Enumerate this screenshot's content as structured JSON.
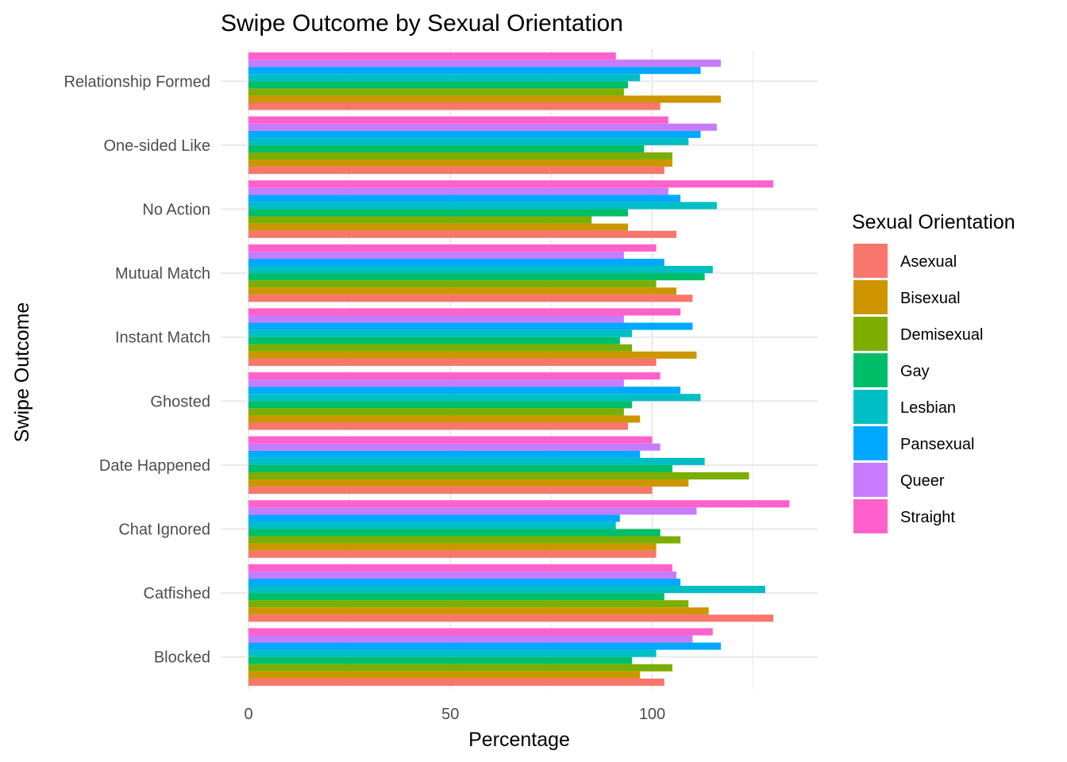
{
  "chart_data": {
    "type": "bar",
    "orientation": "horizontal",
    "title": "Swipe Outcome by Sexual Orientation",
    "xlabel": "Percentage",
    "ylabel": "Swipe Outcome",
    "xlim": [
      0,
      141
    ],
    "x_ticks": [
      0,
      50,
      100
    ],
    "grid": true,
    "legend_title": "Sexual Orientation",
    "legend_position": "right",
    "categories": [
      "Blocked",
      "Catfished",
      "Chat Ignored",
      "Date Happened",
      "Ghosted",
      "Instant Match",
      "Mutual Match",
      "No Action",
      "One-sided Like",
      "Relationship Formed"
    ],
    "series": [
      {
        "name": "Asexual",
        "color": "#F8766D",
        "values": [
          103,
          130,
          101,
          100,
          94,
          101,
          110,
          106,
          103,
          102
        ]
      },
      {
        "name": "Bisexual",
        "color": "#CD9600",
        "values": [
          97,
          114,
          101,
          109,
          97,
          111,
          106,
          94,
          105,
          117
        ]
      },
      {
        "name": "Demisexual",
        "color": "#7CAE00",
        "values": [
          105,
          109,
          107,
          124,
          93,
          95,
          101,
          85,
          105,
          93
        ]
      },
      {
        "name": "Gay",
        "color": "#00BE67",
        "values": [
          95,
          103,
          102,
          105,
          95,
          92,
          113,
          94,
          98,
          94
        ]
      },
      {
        "name": "Lesbian",
        "color": "#00BFC4",
        "values": [
          101,
          128,
          91,
          113,
          112,
          95,
          115,
          116,
          109,
          97
        ]
      },
      {
        "name": "Pansexual",
        "color": "#00A9FF",
        "values": [
          117,
          107,
          92,
          97,
          107,
          110,
          103,
          107,
          112,
          112
        ]
      },
      {
        "name": "Queer",
        "color": "#C77CFF",
        "values": [
          110,
          106,
          111,
          102,
          93,
          93,
          93,
          104,
          116,
          117
        ]
      },
      {
        "name": "Straight",
        "color": "#FF61CC",
        "values": [
          115,
          105,
          134,
          100,
          102,
          107,
          101,
          130,
          104,
          91
        ]
      }
    ]
  }
}
